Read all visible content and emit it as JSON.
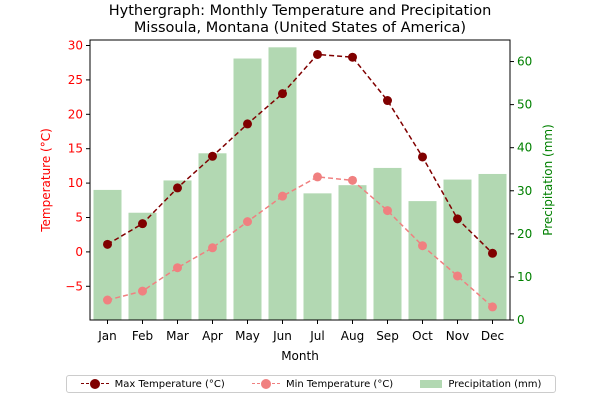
{
  "chart_data": {
    "type": "bar",
    "title": "Hythergraph: Monthly Temperature and Precipitation",
    "subtitle": "Missoula, Montana (United States of America)",
    "xlabel": "Month",
    "ylabel_left": "Temperature (°C)",
    "ylabel_right": "Precipitation (mm)",
    "categories": [
      "Jan",
      "Feb",
      "Mar",
      "Apr",
      "May",
      "Jun",
      "Jul",
      "Aug",
      "Sep",
      "Oct",
      "Nov",
      "Dec"
    ],
    "ylim_left": [
      -9.9,
      30.8
    ],
    "yticks_left": [
      -5,
      0,
      5,
      10,
      15,
      20,
      25,
      30
    ],
    "ylim_right": [
      0,
      65
    ],
    "yticks_right": [
      0,
      10,
      20,
      30,
      40,
      50,
      60
    ],
    "grid": false,
    "legend_position": "bottom",
    "series": [
      {
        "name": "Max Temperature (°C)",
        "type": "line",
        "axis": "left",
        "color": "#800000",
        "values": [
          1.1,
          4.1,
          9.3,
          13.9,
          18.6,
          23.0,
          28.7,
          28.3,
          22.0,
          13.8,
          4.8,
          -0.2
        ]
      },
      {
        "name": "Min Temperature (°C)",
        "type": "line",
        "axis": "left",
        "color": "#f08080",
        "values": [
          -7.0,
          -5.7,
          -2.3,
          0.6,
          4.4,
          8.1,
          10.9,
          10.4,
          6.0,
          0.9,
          -3.5,
          -8.0
        ]
      },
      {
        "name": "Precipitation (mm)",
        "type": "bar",
        "axis": "right",
        "color": "#b2d8b2",
        "values": [
          30.2,
          24.9,
          32.4,
          38.7,
          60.7,
          63.3,
          29.4,
          31.3,
          35.3,
          27.6,
          32.6,
          33.9
        ]
      }
    ],
    "colors": {
      "left_axis": "#ff0000",
      "right_axis": "#008000"
    }
  }
}
